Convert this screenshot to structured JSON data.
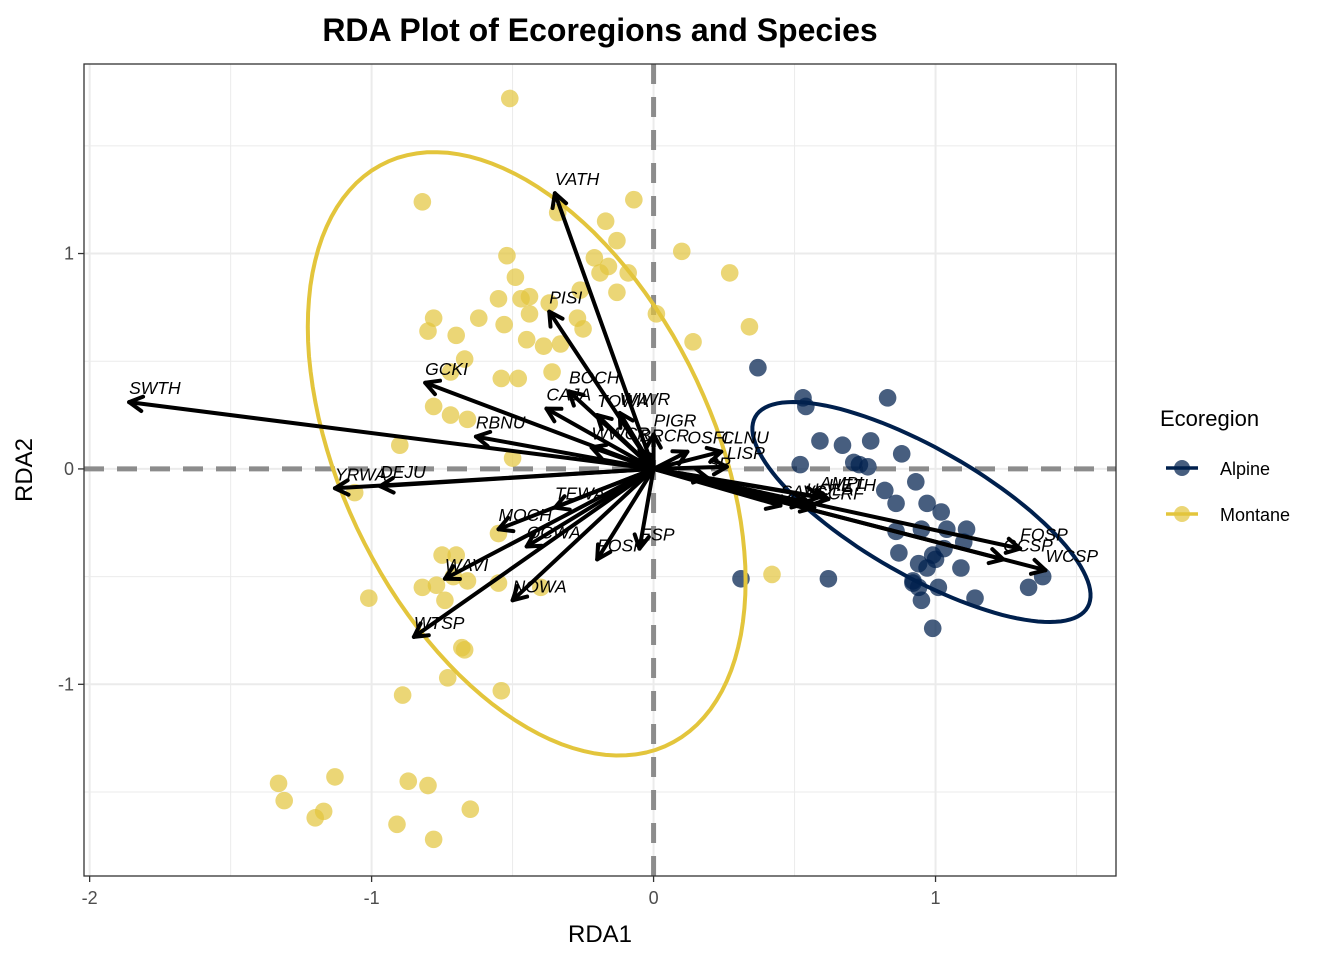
{
  "chart_data": {
    "type": "scatter",
    "title": "RDA Plot of Ecoregions and Species",
    "xlabel": "RDA1",
    "ylabel": "RDA2",
    "xlim": [
      -2.02,
      1.64
    ],
    "ylim": [
      -1.89,
      1.88
    ],
    "x_ticks": [
      -2,
      -1,
      0,
      1
    ],
    "x_tick_labels": [
      "-2",
      "-1",
      "0",
      "1"
    ],
    "y_ticks": [
      -1,
      0,
      1
    ],
    "y_tick_labels": [
      "-1",
      "0",
      "1"
    ],
    "grid": true,
    "legend": {
      "title": "Ecoregion",
      "placement": "right",
      "entries": [
        {
          "name": "Alpine",
          "color": "#00204d"
        },
        {
          "name": "Montane",
          "color": "#e3c53c"
        }
      ]
    },
    "colors": {
      "alpine": "#00204d",
      "montane": "#e3c53c",
      "arrow": "#000000",
      "zero_line": "#8c8c8c"
    },
    "series": [
      {
        "name": "Alpine",
        "points": [
          [
            0.37,
            0.47
          ],
          [
            0.53,
            0.33
          ],
          [
            0.54,
            0.29
          ],
          [
            0.83,
            0.33
          ],
          [
            0.59,
            0.13
          ],
          [
            0.67,
            0.11
          ],
          [
            0.77,
            0.13
          ],
          [
            0.88,
            0.07
          ],
          [
            0.73,
            0.02
          ],
          [
            0.52,
            0.02
          ],
          [
            0.71,
            0.03
          ],
          [
            0.76,
            0.01
          ],
          [
            0.93,
            -0.06
          ],
          [
            0.82,
            -0.1
          ],
          [
            0.86,
            -0.16
          ],
          [
            0.97,
            -0.16
          ],
          [
            1.02,
            -0.2
          ],
          [
            1.11,
            -0.28
          ],
          [
            1.04,
            -0.28
          ],
          [
            0.95,
            -0.28
          ],
          [
            0.86,
            -0.29
          ],
          [
            0.87,
            -0.39
          ],
          [
            1.1,
            -0.34
          ],
          [
            1.03,
            -0.37
          ],
          [
            0.99,
            -0.4
          ],
          [
            0.94,
            -0.44
          ],
          [
            0.97,
            -0.46
          ],
          [
            1.09,
            -0.46
          ],
          [
            0.92,
            -0.52
          ],
          [
            0.94,
            -0.55
          ],
          [
            1.01,
            -0.55
          ],
          [
            0.95,
            -0.61
          ],
          [
            1.14,
            -0.6
          ],
          [
            0.99,
            -0.74
          ],
          [
            0.31,
            -0.51
          ],
          [
            0.62,
            -0.51
          ],
          [
            1.38,
            -0.5
          ],
          [
            1.33,
            -0.55
          ],
          [
            0.92,
            -0.53
          ],
          [
            1.0,
            -0.42
          ]
        ]
      },
      {
        "name": "Montane",
        "points": [
          [
            -0.51,
            1.72
          ],
          [
            -0.82,
            1.24
          ],
          [
            -0.07,
            1.25
          ],
          [
            -0.17,
            1.15
          ],
          [
            -0.34,
            1.19
          ],
          [
            -0.13,
            1.06
          ],
          [
            -0.52,
            0.99
          ],
          [
            -0.21,
            0.98
          ],
          [
            -0.16,
            0.94
          ],
          [
            0.1,
            1.01
          ],
          [
            -0.49,
            0.89
          ],
          [
            -0.19,
            0.91
          ],
          [
            -0.09,
            0.91
          ],
          [
            0.27,
            0.91
          ],
          [
            -0.55,
            0.79
          ],
          [
            -0.47,
            0.79
          ],
          [
            -0.44,
            0.8
          ],
          [
            -0.37,
            0.77
          ],
          [
            -0.26,
            0.83
          ],
          [
            -0.13,
            0.82
          ],
          [
            0.01,
            0.72
          ],
          [
            -0.78,
            0.7
          ],
          [
            -0.62,
            0.7
          ],
          [
            -0.44,
            0.72
          ],
          [
            -0.27,
            0.7
          ],
          [
            -0.25,
            0.65
          ],
          [
            -0.8,
            0.64
          ],
          [
            -0.7,
            0.62
          ],
          [
            -0.53,
            0.67
          ],
          [
            -0.45,
            0.6
          ],
          [
            -0.39,
            0.57
          ],
          [
            -0.33,
            0.58
          ],
          [
            0.34,
            0.66
          ],
          [
            0.14,
            0.59
          ],
          [
            -0.67,
            0.51
          ],
          [
            -0.72,
            0.45
          ],
          [
            -0.54,
            0.42
          ],
          [
            -0.48,
            0.42
          ],
          [
            -0.36,
            0.45
          ],
          [
            -0.78,
            0.29
          ],
          [
            -0.72,
            0.25
          ],
          [
            -0.66,
            0.23
          ],
          [
            -0.9,
            0.11
          ],
          [
            -0.5,
            0.05
          ],
          [
            -1.06,
            -0.11
          ],
          [
            -0.55,
            -0.3
          ],
          [
            -0.7,
            -0.4
          ],
          [
            -0.75,
            -0.4
          ],
          [
            -0.71,
            -0.5
          ],
          [
            -0.77,
            -0.54
          ],
          [
            -0.66,
            -0.52
          ],
          [
            -0.82,
            -0.55
          ],
          [
            -1.01,
            -0.6
          ],
          [
            -0.74,
            -0.61
          ],
          [
            -0.68,
            -0.83
          ],
          [
            -0.67,
            -0.84
          ],
          [
            -0.73,
            -0.97
          ],
          [
            -0.89,
            -1.05
          ],
          [
            -0.54,
            -1.03
          ],
          [
            -1.33,
            -1.46
          ],
          [
            -1.31,
            -1.54
          ],
          [
            -1.13,
            -1.43
          ],
          [
            -1.2,
            -1.62
          ],
          [
            -1.17,
            -1.59
          ],
          [
            -0.87,
            -1.45
          ],
          [
            -0.8,
            -1.47
          ],
          [
            -0.91,
            -1.65
          ],
          [
            -0.78,
            -1.72
          ],
          [
            -0.65,
            -1.58
          ],
          [
            0.42,
            -0.49
          ],
          [
            -0.55,
            -0.53
          ],
          [
            -0.4,
            -0.55
          ]
        ]
      }
    ],
    "ellipses": [
      {
        "name": "Alpine",
        "cx": 0.95,
        "cy": -0.2,
        "rx": 0.74,
        "ry": 0.27,
        "angle_deg": -39
      },
      {
        "name": "Montane",
        "cx": -0.45,
        "cy": 0.07,
        "rx": 1.45,
        "ry": 0.68,
        "angle_deg": -73
      }
    ],
    "arrows": [
      {
        "label": "VATH",
        "x": -0.35,
        "y": 1.28
      },
      {
        "label": "PISI",
        "x": -0.37,
        "y": 0.73
      },
      {
        "label": "SWTH",
        "x": -1.86,
        "y": 0.31
      },
      {
        "label": "GCKI",
        "x": -0.81,
        "y": 0.4
      },
      {
        "label": "BOCH",
        "x": -0.3,
        "y": 0.36
      },
      {
        "label": "CAJA",
        "x": -0.38,
        "y": 0.28
      },
      {
        "label": "TOWA",
        "x": -0.2,
        "y": 0.25
      },
      {
        "label": "WIWR",
        "x": -0.12,
        "y": 0.26
      },
      {
        "label": "RBNU",
        "x": -0.63,
        "y": 0.15
      },
      {
        "label": "PIGR",
        "x": 0.0,
        "y": 0.16
      },
      {
        "label": "WWCR",
        "x": -0.22,
        "y": 0.1
      },
      {
        "label": "BRCR",
        "x": -0.05,
        "y": 0.09
      },
      {
        "label": "CLNU",
        "x": 0.24,
        "y": 0.08
      },
      {
        "label": "OSFL",
        "x": 0.12,
        "y": 0.08
      },
      {
        "label": "LISP",
        "x": 0.26,
        "y": 0.01
      },
      {
        "label": "DEJU",
        "x": -0.97,
        "y": -0.08
      },
      {
        "label": "YRWA",
        "x": -1.13,
        "y": -0.09
      },
      {
        "label": "MOCH",
        "x": -0.55,
        "y": -0.28
      },
      {
        "label": "TEWA",
        "x": -0.35,
        "y": -0.18
      },
      {
        "label": "OCWA",
        "x": -0.45,
        "y": -0.36
      },
      {
        "label": "WAVI",
        "x": -0.74,
        "y": -0.51
      },
      {
        "label": "FOSP",
        "x": -0.2,
        "y": -0.42
      },
      {
        "label": "NOWA",
        "x": -0.5,
        "y": -0.61
      },
      {
        "label": "WTSP",
        "x": -0.85,
        "y": -0.78
      },
      {
        "label": "SAVS",
        "x": 0.45,
        "y": -0.17
      },
      {
        "label": "AMPI",
        "x": 0.59,
        "y": -0.13
      },
      {
        "label": "HOLA",
        "x": 0.54,
        "y": -0.16
      },
      {
        "label": "GCRF",
        "x": 0.57,
        "y": -0.18
      },
      {
        "label": "FOSP",
        "x": 1.3,
        "y": -0.37
      },
      {
        "label": "GCSP",
        "x": 1.24,
        "y": -0.42
      },
      {
        "label": "WCSP",
        "x": 1.39,
        "y": -0.47
      },
      {
        "label": "HETH",
        "x": 0.62,
        "y": -0.14
      },
      {
        "label": "SP",
        "x": 0.19,
        "y": -0.04
      },
      {
        "label": "ESP",
        "x": -0.05,
        "y": -0.37
      }
    ]
  }
}
